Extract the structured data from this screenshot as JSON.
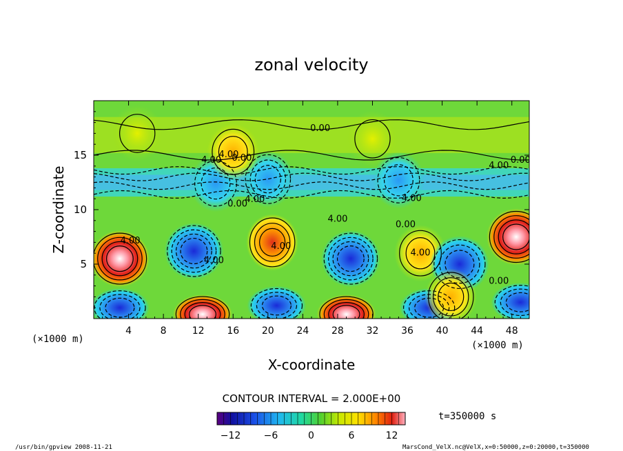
{
  "chart_data": {
    "type": "heatmap",
    "title": "zonal velocity",
    "xlabel": "X-coordinate",
    "ylabel": "Z-coordinate",
    "x_unit_label": "(×1000 m)",
    "z_unit_label": "(×1000 m)",
    "xlim": [
      0,
      50
    ],
    "ylim": [
      0,
      20
    ],
    "x_ticks": [
      "4",
      "8",
      "12",
      "16",
      "20",
      "24",
      "28",
      "32",
      "36",
      "40",
      "44",
      "48"
    ],
    "y_ticks": [
      "5",
      "10",
      "15"
    ],
    "contour_interval_text": "CONTOUR INTERVAL = 2.000E+00",
    "time_text": "t=350000 s",
    "colorbar": {
      "min": -14,
      "max": 14,
      "tick_labels": [
        "−12",
        "−6",
        "0",
        "6",
        "12"
      ],
      "tick_values": [
        -12,
        -6,
        0,
        6,
        12
      ]
    },
    "contour_labels": [
      {
        "text": "0.00",
        "x": 26,
        "z": 17.2
      },
      {
        "text": "4.00",
        "x": 13.5,
        "z": 14.3
      },
      {
        "text": "4.00",
        "x": 15.5,
        "z": 14.8
      },
      {
        "text": "0.00",
        "x": 17,
        "z": 14.5
      },
      {
        "text": "4.00",
        "x": 46.5,
        "z": 13.8
      },
      {
        "text": "0.00",
        "x": 49,
        "z": 14.3
      },
      {
        "text": "0.00",
        "x": 16.5,
        "z": 10.3
      },
      {
        "text": "4.00",
        "x": 18.5,
        "z": 10.7
      },
      {
        "text": "4.00",
        "x": 36.5,
        "z": 10.8
      },
      {
        "text": "4.00",
        "x": 28,
        "z": 8.9
      },
      {
        "text": "0.00",
        "x": 35.8,
        "z": 8.4
      },
      {
        "text": "4.00",
        "x": 4.2,
        "z": 6.9
      },
      {
        "text": "4.00",
        "x": 21.5,
        "z": 6.4
      },
      {
        "text": "4.00",
        "x": 13.8,
        "z": 5.1
      },
      {
        "text": "4.00",
        "x": 37.5,
        "z": 5.8
      },
      {
        "text": "0.00",
        "x": 46.5,
        "z": 3.2
      }
    ],
    "features": [
      {
        "x": 3,
        "z": 5.5,
        "u": 14
      },
      {
        "x": 11.5,
        "z": 6.2,
        "u": -12
      },
      {
        "x": 20.5,
        "z": 7.0,
        "u": 10
      },
      {
        "x": 29.5,
        "z": 5.5,
        "u": -11
      },
      {
        "x": 37.5,
        "z": 6.0,
        "u": 7
      },
      {
        "x": 42,
        "z": 5.0,
        "u": -9
      },
      {
        "x": 48.5,
        "z": 7.5,
        "u": 12
      },
      {
        "x": 12.5,
        "z": 0.4,
        "u": 14
      },
      {
        "x": 29,
        "z": 0.4,
        "u": 14
      },
      {
        "x": 3,
        "z": 1.0,
        "u": -10
      },
      {
        "x": 21,
        "z": 1.2,
        "u": -9
      },
      {
        "x": 38.5,
        "z": 1.0,
        "u": -10
      },
      {
        "x": 49,
        "z": 1.5,
        "u": -10
      },
      {
        "x": 41,
        "z": 2.0,
        "u": 8
      },
      {
        "x": 20,
        "z": 12.8,
        "u": -8
      },
      {
        "x": 35,
        "z": 12.7,
        "u": -6
      },
      {
        "x": 14,
        "z": 12.4,
        "u": -6
      },
      {
        "x": 16,
        "z": 15.3,
        "u": 6
      },
      {
        "x": 32,
        "z": 16.5,
        "u": 4
      },
      {
        "x": 5,
        "z": 17.0,
        "u": 4
      }
    ]
  },
  "footer": {
    "left": "/usr/bin/gpview   2008-11-21",
    "right": "MarsCond_VelX.nc@VelX,x=0:50000,z=0:20000,t=350000"
  }
}
